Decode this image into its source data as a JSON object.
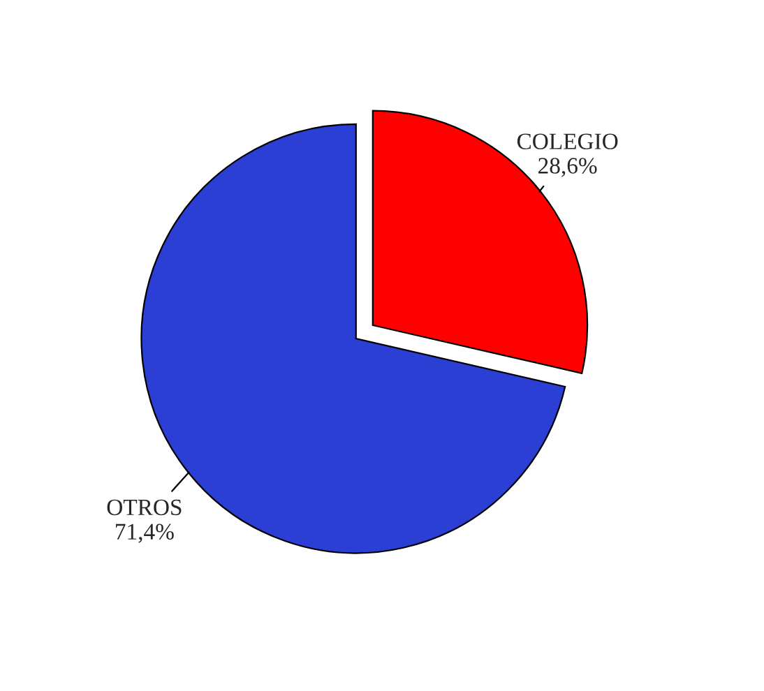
{
  "chart_data": {
    "type": "pie",
    "categories": [
      "COLEGIO",
      "OTROS"
    ],
    "values": [
      28.6,
      71.4
    ],
    "colors": [
      "#ff0000",
      "#2b3fd4"
    ],
    "value_labels": [
      "28,6%",
      "71,4%"
    ],
    "legend": false
  }
}
